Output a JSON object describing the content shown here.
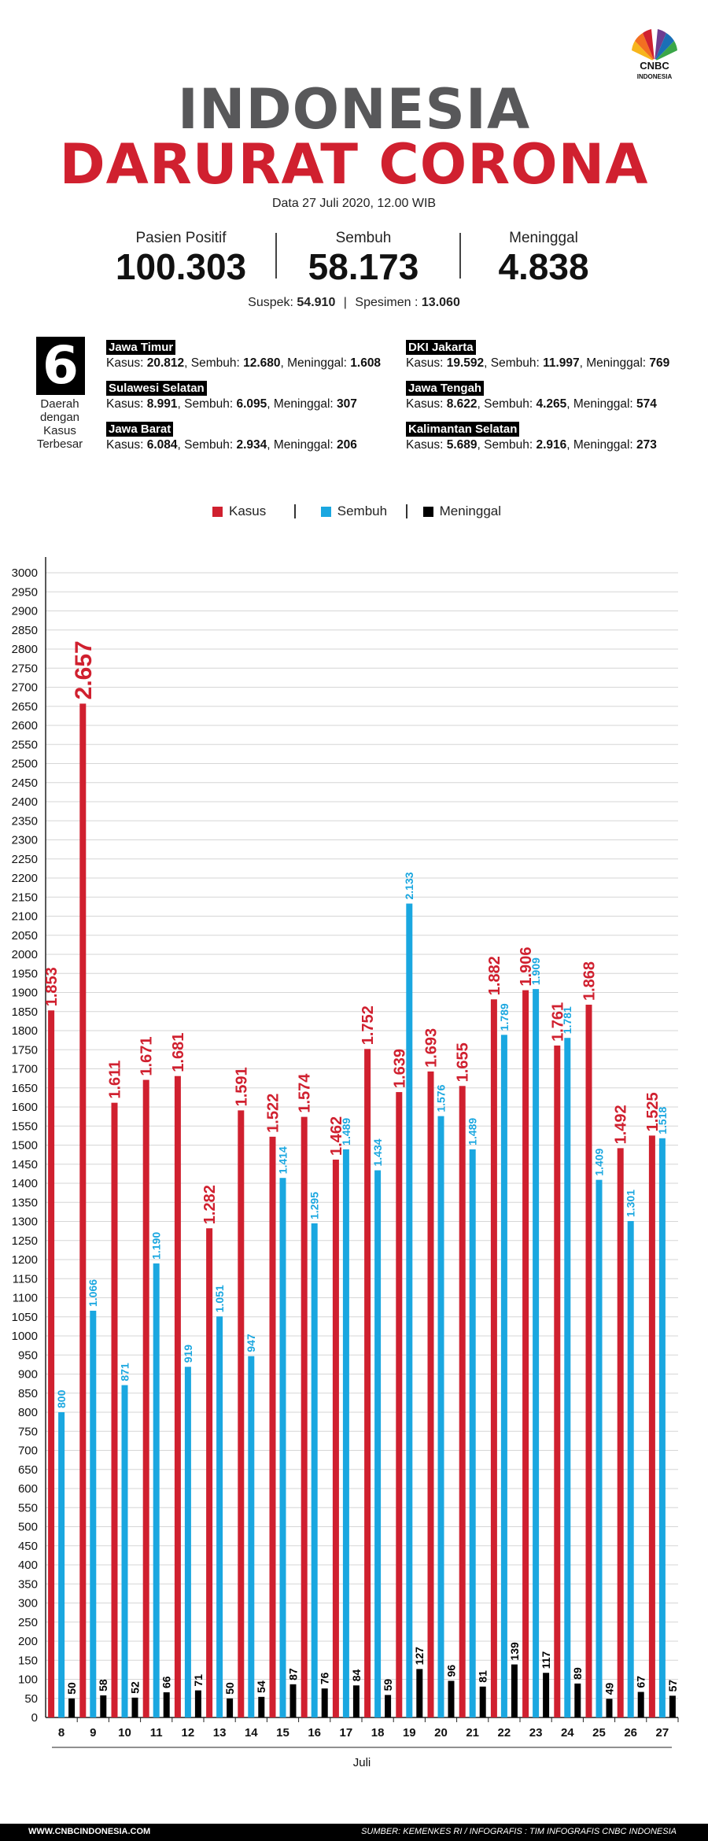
{
  "brand": {
    "logo_line1": "CNBC",
    "logo_line2": "INDONESIA"
  },
  "title": {
    "line1": "INDONESIA",
    "line2": "DARURAT CORONA"
  },
  "date_text": "Data 27 Juli 2020, 12.00 WIB",
  "stats": [
    {
      "label": "Pasien Positif",
      "value": "100.303"
    },
    {
      "label": "Sembuh",
      "value": "58.173"
    },
    {
      "label": "Meninggal",
      "value": "4.838"
    }
  ],
  "suspek": {
    "label": "Suspek:",
    "value": "54.910",
    "sep": "|",
    "label2": "Spesimen :",
    "value2": "13.060"
  },
  "regions_block": {
    "number": "6",
    "caption_lines": [
      "Daerah",
      "dengan",
      "Kasus",
      "Terbesar"
    ]
  },
  "regions": [
    {
      "name": "Jawa Timur",
      "kasus": "20.812",
      "sembuh": "12.680",
      "meninggal": "1.608"
    },
    {
      "name": "DKI Jakarta",
      "kasus": "19.592",
      "sembuh": "11.997",
      "meninggal": "769"
    },
    {
      "name": "Sulawesi Selatan",
      "kasus": "8.991",
      "sembuh": "6.095",
      "meninggal": "307"
    },
    {
      "name": "Jawa Tengah",
      "kasus": "8.622",
      "sembuh": "4.265",
      "meninggal": "574"
    },
    {
      "name": "Jawa Barat",
      "kasus": "6.084",
      "sembuh": "2.934",
      "meninggal": "206"
    },
    {
      "name": "Kalimantan Selatan",
      "kasus": "5.689",
      "sembuh": "2.916",
      "meninggal": "273"
    }
  ],
  "region_labels": {
    "kasus": "Kasus:",
    "sembuh": "Sembuh:",
    "meninggal": "Meninggal:"
  },
  "legend": [
    {
      "label": "Kasus",
      "color": "#d0202f"
    },
    {
      "label": "Sembuh",
      "color": "#1aa7e0"
    },
    {
      "label": "Meninggal",
      "color": "#000000"
    }
  ],
  "chart_data": {
    "type": "bar",
    "categories": [
      "8",
      "9",
      "10",
      "11",
      "12",
      "13",
      "14",
      "15",
      "16",
      "17",
      "18",
      "19",
      "20",
      "21",
      "22",
      "23",
      "24",
      "25",
      "26",
      "27"
    ],
    "series": [
      {
        "name": "Kasus",
        "color": "#d0202f",
        "values": [
          1853,
          2657,
          1611,
          1671,
          1681,
          1282,
          1591,
          1522,
          1574,
          1462,
          1752,
          1639,
          1693,
          1655,
          1882,
          1906,
          1761,
          1868,
          1492,
          1525
        ],
        "labels": [
          "1.853",
          "2.657",
          "1.611",
          "1.671",
          "1.681",
          "1.282",
          "1.591",
          "1.522",
          "1.574",
          "1.462",
          "1.752",
          "1.639",
          "1.693",
          "1.655",
          "1.882",
          "1.906",
          "1.761",
          "1.868",
          "1.492",
          "1.525"
        ]
      },
      {
        "name": "Sembuh",
        "color": "#1aa7e0",
        "values": [
          800,
          1066,
          871,
          1190,
          919,
          1051,
          947,
          1414,
          1295,
          1489,
          1434,
          2133,
          1576,
          1489,
          1789,
          1909,
          1781,
          1409,
          1301,
          1518
        ],
        "labels": [
          "800",
          "1.066",
          "871",
          "1.190",
          "919",
          "1.051",
          "947",
          "1.414",
          "1.295",
          "1.489",
          "1.434",
          "2.133",
          "1.576",
          "1.489",
          "1.789",
          "1.909",
          "1.781",
          "1.409",
          "1.301",
          "1.518"
        ]
      },
      {
        "name": "Meninggal",
        "color": "#000000",
        "values": [
          50,
          58,
          52,
          66,
          71,
          50,
          54,
          87,
          76,
          84,
          59,
          127,
          96,
          81,
          139,
          117,
          89,
          49,
          67,
          57
        ],
        "labels": [
          "50",
          "58",
          "52",
          "66",
          "71",
          "50",
          "54",
          "87",
          "76",
          "84",
          "59",
          "127",
          "96",
          "81",
          "139",
          "117",
          "89",
          "49",
          "67",
          "57"
        ]
      }
    ],
    "ylim": [
      0,
      3000
    ],
    "yticks": [
      0,
      50,
      100,
      150,
      200,
      250,
      300,
      350,
      400,
      450,
      500,
      550,
      600,
      650,
      700,
      750,
      800,
      850,
      900,
      950,
      1000,
      1050,
      1100,
      1150,
      1200,
      1250,
      1300,
      1350,
      1400,
      1450,
      1500,
      1550,
      1600,
      1650,
      1700,
      1750,
      1800,
      1850,
      1900,
      1950,
      2000,
      2050,
      2100,
      2150,
      2200,
      2250,
      2300,
      2350,
      2400,
      2450,
      2500,
      2550,
      2600,
      2650,
      2700,
      2750,
      2800,
      2850,
      2900,
      2950,
      3000
    ],
    "xlabel": "Juli",
    "ylabel": "",
    "grid": true
  },
  "footer": {
    "left": "WWW.CNBCINDONESIA.COM",
    "right": "SUMBER: KEMENKES RI / INFOGRAFIS : TIM INFOGRAFIS CNBC INDONESIA"
  }
}
